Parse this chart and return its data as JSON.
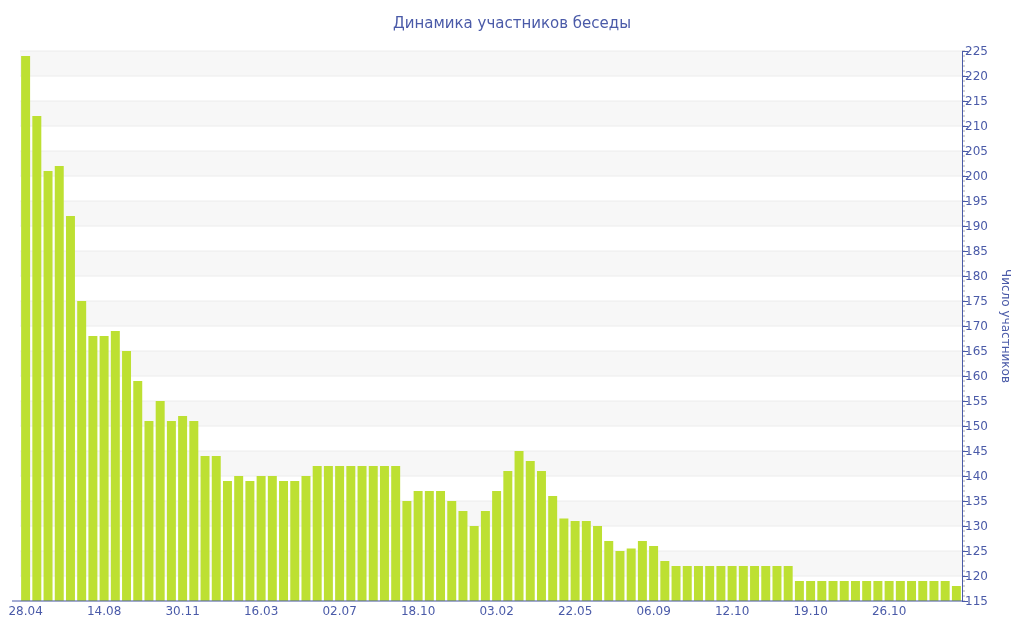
{
  "chart_data": {
    "type": "bar",
    "title": "Динамика участников беседы",
    "ylabel": "Число участников",
    "categories": [
      "28.04",
      null,
      null,
      null,
      null,
      null,
      null,
      "14.08",
      null,
      null,
      null,
      null,
      null,
      null,
      "30.11",
      null,
      null,
      null,
      null,
      null,
      null,
      "16.03",
      null,
      null,
      null,
      null,
      null,
      null,
      "02.07",
      null,
      null,
      null,
      null,
      null,
      null,
      "18.10",
      null,
      null,
      null,
      null,
      null,
      null,
      "03.02",
      null,
      null,
      null,
      null,
      null,
      null,
      "22.05",
      null,
      null,
      null,
      null,
      null,
      null,
      "06.09",
      null,
      null,
      null,
      null,
      null,
      null,
      "12.10",
      null,
      null,
      null,
      null,
      null,
      null,
      "19.10",
      null,
      null,
      null,
      null,
      null,
      null,
      "26.10",
      null,
      null,
      null,
      null,
      null,
      null
    ],
    "series": [
      {
        "color": "#bde032",
        "values": [
          224,
          212,
          201,
          202,
          192,
          175,
          168,
          168,
          169,
          165,
          159,
          151,
          155,
          151,
          152,
          151,
          144,
          144,
          139,
          140,
          139,
          140,
          140,
          139,
          139,
          140,
          142,
          142,
          142,
          142,
          142,
          142,
          142,
          142,
          135,
          137,
          137,
          137,
          135,
          133,
          130,
          133,
          137,
          141,
          145,
          143,
          141,
          136,
          131.5,
          131,
          131,
          130,
          127,
          125,
          125.5,
          127,
          126,
          123,
          122,
          122,
          122,
          122,
          122,
          122,
          122,
          122,
          122,
          122,
          122,
          119,
          119,
          119,
          119,
          119,
          119,
          119,
          119,
          119,
          119,
          119,
          119,
          119,
          119,
          118
        ]
      }
    ],
    "ylim": [
      115,
      225
    ],
    "yticks": [
      115,
      120,
      125,
      130,
      135,
      140,
      145,
      150,
      155,
      160,
      165,
      170,
      175,
      180,
      185,
      190,
      195,
      200,
      205,
      210,
      215,
      220,
      225
    ],
    "grid": "y"
  }
}
